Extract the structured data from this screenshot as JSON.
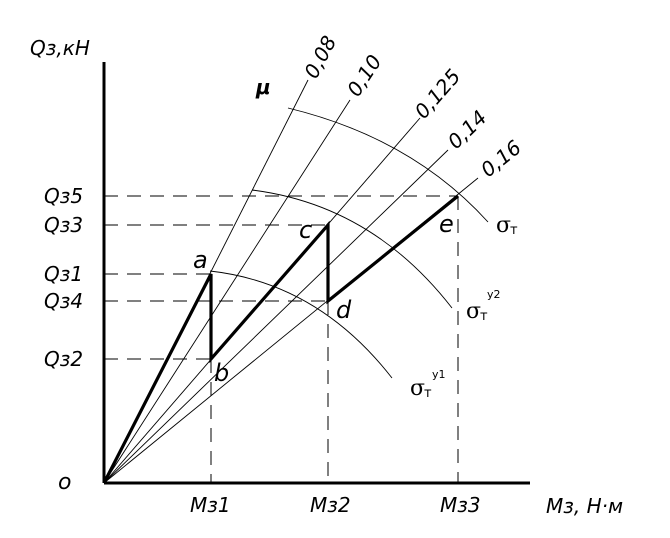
{
  "axes": {
    "y_title": "Qз,кН",
    "x_title": "Mз,  Н·м",
    "origin": "o"
  },
  "y_ticks": [
    "Qз5",
    "Qз3",
    "Qз1",
    "Qз4",
    "Qз2"
  ],
  "x_ticks": [
    "Mз1",
    "Mз2",
    "Mз3"
  ],
  "mu_symbol": "μ",
  "rays": [
    "0,08",
    "0,10",
    "0,125",
    "0,14",
    "0,16"
  ],
  "points": [
    "a",
    "b",
    "c",
    "d",
    "e"
  ],
  "curves": [
    {
      "sigma": "σ",
      "sub": "т",
      "sup": ""
    },
    {
      "sigma": "σ",
      "sub": "т",
      "sup": "у2"
    },
    {
      "sigma": "σ",
      "sub": "т",
      "sup": "у1"
    }
  ]
}
